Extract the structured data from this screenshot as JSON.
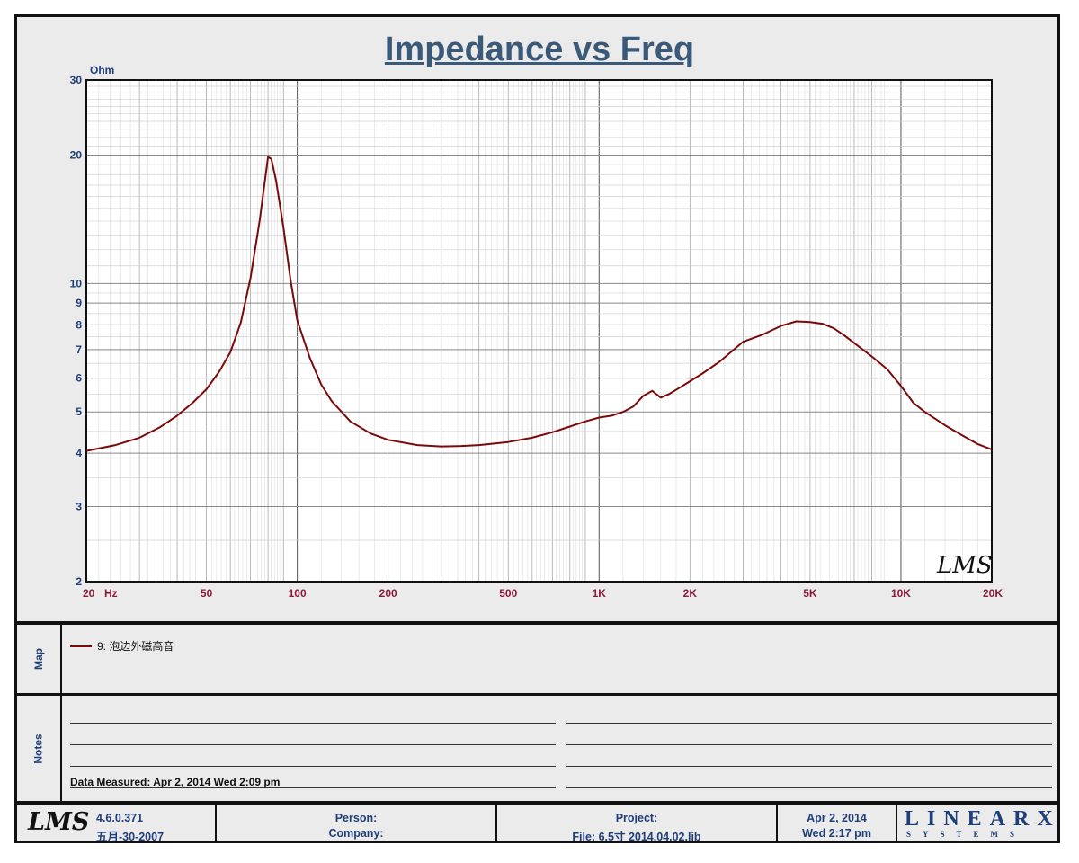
{
  "chart_data": {
    "type": "line",
    "title": "Impedance vs Freq",
    "ylabel": "Ohm",
    "xlabel": "Hz",
    "x_scale": "log",
    "y_scale": "log",
    "xlim": [
      20,
      20000
    ],
    "ylim": [
      2,
      30
    ],
    "x_ticks": [
      {
        "value": 20,
        "label": "20"
      },
      {
        "value": 50,
        "label": "50"
      },
      {
        "value": 100,
        "label": "100"
      },
      {
        "value": 200,
        "label": "200"
      },
      {
        "value": 500,
        "label": "500"
      },
      {
        "value": 1000,
        "label": "1K"
      },
      {
        "value": 2000,
        "label": "2K"
      },
      {
        "value": 5000,
        "label": "5K"
      },
      {
        "value": 10000,
        "label": "10K"
      },
      {
        "value": 20000,
        "label": "20K"
      }
    ],
    "y_ticks": [
      2,
      3,
      4,
      5,
      6,
      7,
      8,
      9,
      10,
      20,
      30
    ],
    "grid": true,
    "series": [
      {
        "name": "9: 泡边外磁高音",
        "color": "#7a0a0a",
        "points": [
          [
            20,
            4.05
          ],
          [
            25,
            4.18
          ],
          [
            30,
            4.35
          ],
          [
            35,
            4.6
          ],
          [
            40,
            4.9
          ],
          [
            45,
            5.25
          ],
          [
            50,
            5.65
          ],
          [
            55,
            6.2
          ],
          [
            60,
            6.9
          ],
          [
            65,
            8.1
          ],
          [
            70,
            10.3
          ],
          [
            75,
            14.0
          ],
          [
            80,
            19.8
          ],
          [
            82,
            19.6
          ],
          [
            85,
            17.5
          ],
          [
            90,
            13.5
          ],
          [
            95,
            10.2
          ],
          [
            100,
            8.2
          ],
          [
            110,
            6.7
          ],
          [
            120,
            5.8
          ],
          [
            130,
            5.3
          ],
          [
            150,
            4.75
          ],
          [
            175,
            4.45
          ],
          [
            200,
            4.3
          ],
          [
            250,
            4.18
          ],
          [
            300,
            4.15
          ],
          [
            350,
            4.16
          ],
          [
            400,
            4.18
          ],
          [
            500,
            4.25
          ],
          [
            600,
            4.35
          ],
          [
            700,
            4.48
          ],
          [
            800,
            4.62
          ],
          [
            900,
            4.75
          ],
          [
            1000,
            4.85
          ],
          [
            1100,
            4.9
          ],
          [
            1200,
            5.0
          ],
          [
            1300,
            5.15
          ],
          [
            1400,
            5.45
          ],
          [
            1500,
            5.6
          ],
          [
            1550,
            5.5
          ],
          [
            1600,
            5.4
          ],
          [
            1700,
            5.5
          ],
          [
            1850,
            5.7
          ],
          [
            2000,
            5.9
          ],
          [
            2200,
            6.15
          ],
          [
            2500,
            6.55
          ],
          [
            3000,
            7.3
          ],
          [
            3500,
            7.6
          ],
          [
            4000,
            7.95
          ],
          [
            4500,
            8.15
          ],
          [
            5000,
            8.12
          ],
          [
            5500,
            8.05
          ],
          [
            6000,
            7.85
          ],
          [
            6500,
            7.55
          ],
          [
            7000,
            7.25
          ],
          [
            8000,
            6.75
          ],
          [
            9000,
            6.3
          ],
          [
            10000,
            5.75
          ],
          [
            11000,
            5.25
          ],
          [
            12000,
            5.0
          ],
          [
            14000,
            4.65
          ],
          [
            16000,
            4.4
          ],
          [
            18000,
            4.2
          ],
          [
            20000,
            4.08
          ]
        ]
      }
    ]
  },
  "legend": {
    "entry": "9: 泡边外磁高音"
  },
  "panels": {
    "map_label": "Map",
    "notes_label": "Notes"
  },
  "notes": {
    "data_measured": "Data Measured: Apr  2, 2014  Wed  2:09 pm"
  },
  "footer": {
    "logo_text": "LMS",
    "version": "4.6.0.371",
    "version_date": "五月-30-2007",
    "person_label": "Person:",
    "company_label": "Company:",
    "project_label": "Project:",
    "file_label": "File: 6.5寸  2014.04.02.lib",
    "date": "Apr  2, 2014",
    "time": "Wed  2:17 pm",
    "brand": "LINEARX",
    "brand_sub": "SYSTEMS"
  },
  "watermark": "LMS",
  "colors": {
    "curve": "#7a0a0a",
    "axis_text": "#1f3f7a",
    "x_tick_text": "#8b1a3a",
    "title": "#3b5a7a"
  }
}
